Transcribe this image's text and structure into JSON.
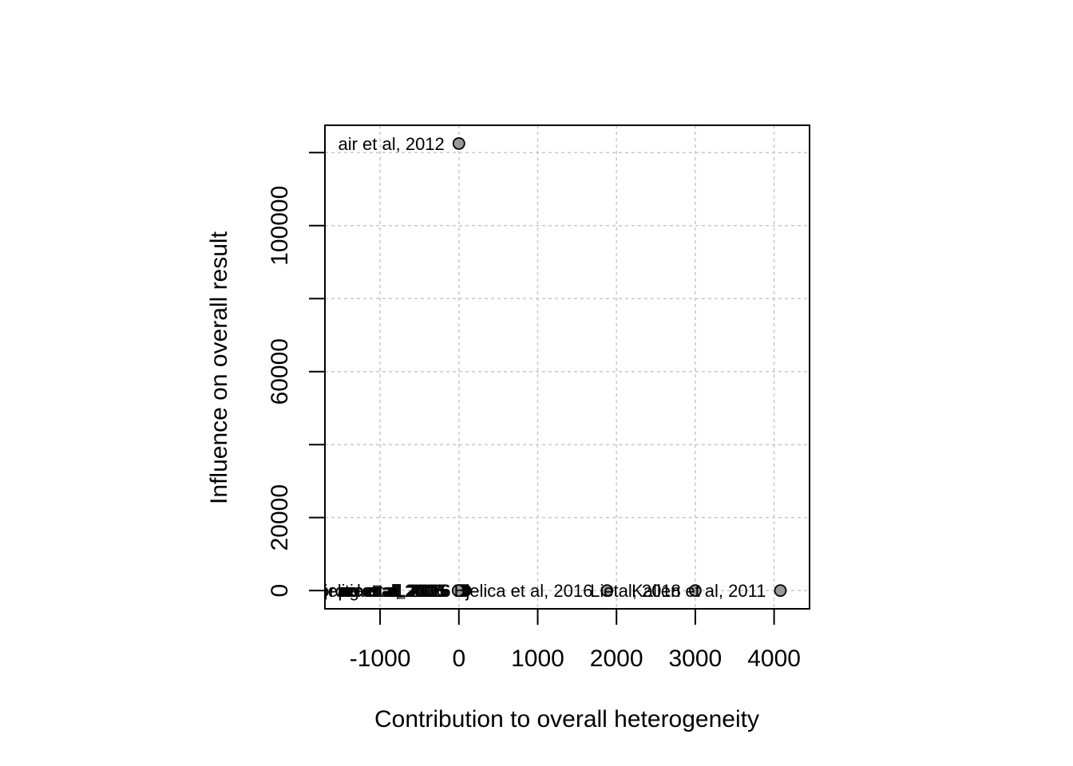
{
  "chart_data": {
    "type": "scatter",
    "xlabel": "Contribution to overall heterogeneity",
    "ylabel": "Influence on overall result",
    "xlim": [
      -1700,
      4450
    ],
    "ylim": [
      -5000,
      127500
    ],
    "x_ticks": [
      -1000,
      0,
      1000,
      2000,
      3000,
      4000
    ],
    "x_tick_labels": [
      "-1000",
      "0",
      "1000",
      "2000",
      "3000",
      "4000"
    ],
    "y_ticks": [
      0,
      20000,
      40000,
      60000,
      80000,
      100000,
      120000
    ],
    "y_tick_labels": [
      "0",
      "20000",
      "",
      "60000",
      "",
      "100000",
      ""
    ],
    "grid": true,
    "point_color": "#999999",
    "points": [
      {
        "x": 0,
        "y": 122500,
        "label": "air et al, 2012"
      },
      {
        "x": 4080,
        "y": 0,
        "label": "Kallen et al, 2011"
      },
      {
        "x": 3000,
        "y": 0,
        "label": "Lietal, 2018"
      },
      {
        "x": 1880,
        "y": 0,
        "label": "Bjelica et al, 2016"
      },
      {
        "x": 80,
        "y": 0,
        "label": "Bjelica et al, 2016"
      },
      {
        "x": 60,
        "y": 0,
        "label": "jorotic et al, 2016"
      },
      {
        "x": 40,
        "y": 0,
        "label": "ael et al, 2015"
      },
      {
        "x": 20,
        "y": 0,
        "label": "ng et al, 2016"
      },
      {
        "x": 0,
        "y": 0,
        "label": "pe et al, 2018"
      },
      {
        "x": -10,
        "y": 0,
        "label": "ez et al, 2006"
      }
    ]
  }
}
